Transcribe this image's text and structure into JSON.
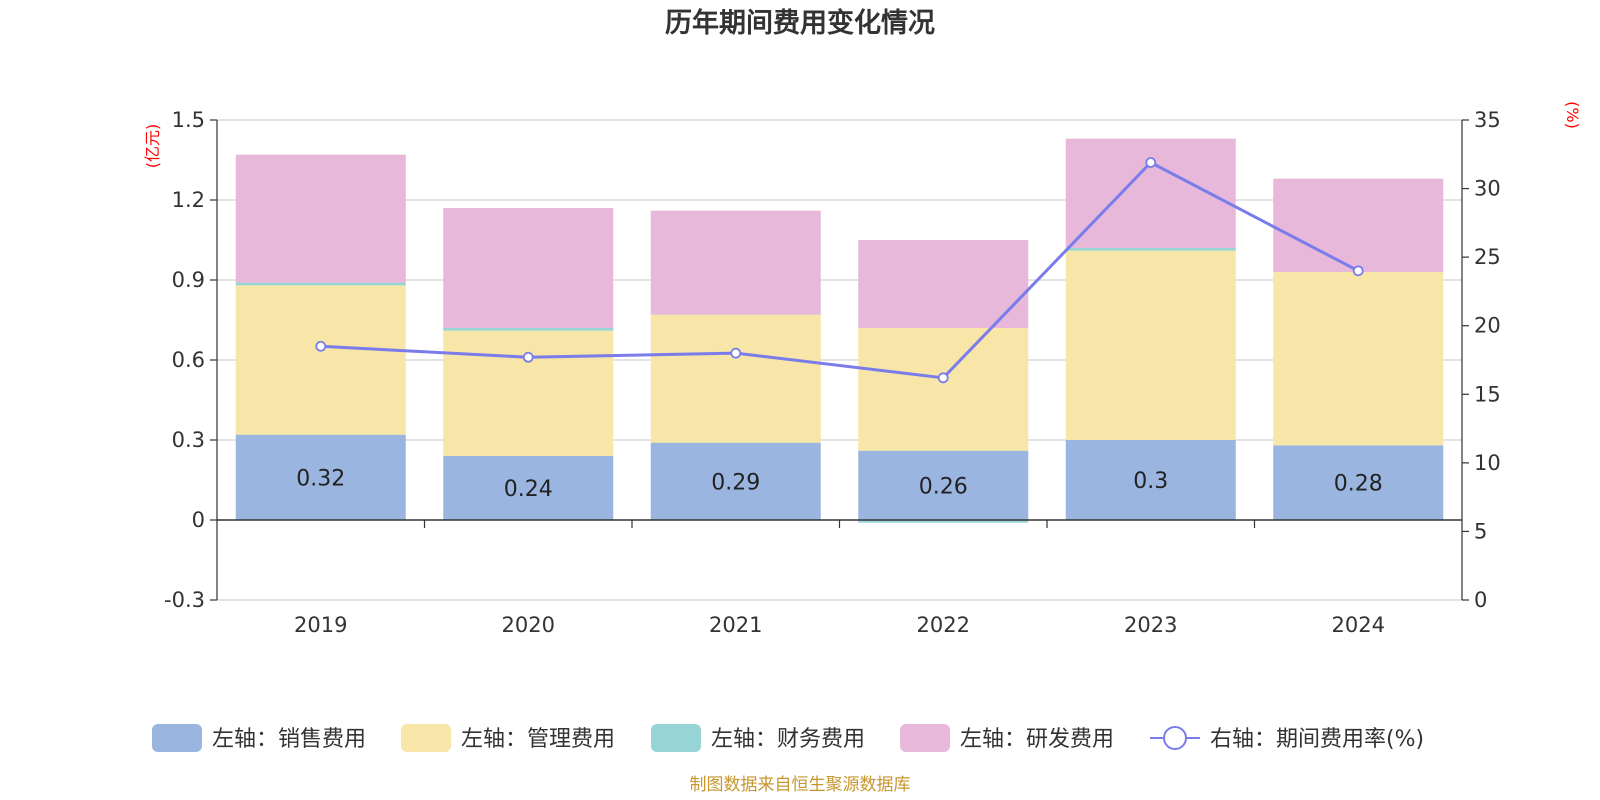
{
  "chart_data": {
    "type": "bar",
    "title": "历年期间费用变化情况",
    "categories": [
      "2019",
      "2020",
      "2021",
      "2022",
      "2023",
      "2024"
    ],
    "left_axis": {
      "unit": "(亿元)",
      "ylim": [
        -0.3,
        1.5
      ],
      "ticks": [
        "-0.3",
        "0",
        "0.3",
        "0.6",
        "0.9",
        "1.2",
        "1.5"
      ],
      "tick_values": [
        -0.3,
        0,
        0.3,
        0.6,
        0.9,
        1.2,
        1.5
      ]
    },
    "right_axis": {
      "unit": "(%)",
      "ylim": [
        0,
        35
      ],
      "ticks": [
        "0",
        "5",
        "10",
        "15",
        "20",
        "25",
        "30",
        "35"
      ],
      "tick_values": [
        0,
        5,
        10,
        15,
        20,
        25,
        30,
        35
      ]
    },
    "series": [
      {
        "name": "左轴：销售费用",
        "kind": "bar",
        "axis": "left",
        "color": "#9ab6e0",
        "values": [
          0.32,
          0.24,
          0.29,
          0.26,
          0.3,
          0.28
        ],
        "labels": [
          "0.32",
          "0.24",
          "0.29",
          "0.26",
          "0.3",
          "0.28"
        ]
      },
      {
        "name": "左轴：管理费用",
        "kind": "bar",
        "axis": "left",
        "color": "#f7e6a8",
        "values": [
          0.56,
          0.47,
          0.48,
          0.46,
          0.71,
          0.65
        ]
      },
      {
        "name": "左轴：财务费用",
        "kind": "bar",
        "axis": "left",
        "color": "#96d4d6",
        "values": [
          0.01,
          0.01,
          0.0,
          -0.01,
          0.01,
          0.0
        ]
      },
      {
        "name": "左轴：研发费用",
        "kind": "bar",
        "axis": "left",
        "color": "#e7b8d9",
        "values": [
          0.48,
          0.45,
          0.39,
          0.33,
          0.41,
          0.35
        ]
      },
      {
        "name": "右轴：期间费用率(%)",
        "kind": "line",
        "axis": "right",
        "color": "#7b7cec",
        "values": [
          18.5,
          17.7,
          18.0,
          16.2,
          31.9,
          24.0
        ]
      }
    ],
    "grid": true,
    "legend_position": "bottom"
  },
  "source": "制图数据来自恒生聚源数据库"
}
